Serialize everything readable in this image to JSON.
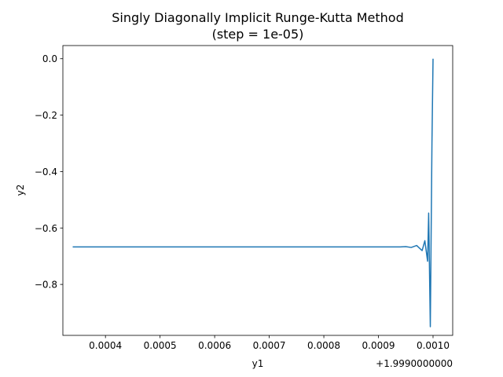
{
  "chart_data": {
    "type": "line",
    "title": "Singly Diagonally Implicit Runge-Kutta Method",
    "subtitle": "(step = 1e-05)",
    "xlabel": "y1",
    "ylabel": "y2",
    "x_offset_label": "+1.9990000000",
    "xlim": [
      0.000322,
      0.001036
    ],
    "ylim": [
      -0.9806,
      0.0466
    ],
    "xticks": [
      0.0004,
      0.0005,
      0.0006,
      0.0007,
      0.0008,
      0.0009,
      0.001
    ],
    "xtick_labels": [
      "0.0004",
      "0.0005",
      "0.0006",
      "0.0007",
      "0.0008",
      "0.0009",
      "0.0010"
    ],
    "yticks": [
      0.0,
      -0.2,
      -0.4,
      -0.6,
      -0.8
    ],
    "ytick_labels": [
      "0.0",
      "−0.2",
      "−0.4",
      "−0.6",
      "−0.8"
    ],
    "grid": false,
    "series": [
      {
        "color": "#1f77b4",
        "x": [
          0.00034,
          0.0005,
          0.0007,
          0.0009,
          0.00094,
          0.00095,
          0.00096,
          0.00097,
          0.00098,
          0.000985,
          0.00099,
          0.000992,
          0.000995,
          0.000998,
          0.001
        ],
        "y": [
          -0.667,
          -0.667,
          -0.667,
          -0.667,
          -0.667,
          -0.666,
          -0.669,
          -0.662,
          -0.68,
          -0.645,
          -0.718,
          -0.547,
          -0.95,
          -0.3,
          0.0
        ]
      }
    ]
  }
}
